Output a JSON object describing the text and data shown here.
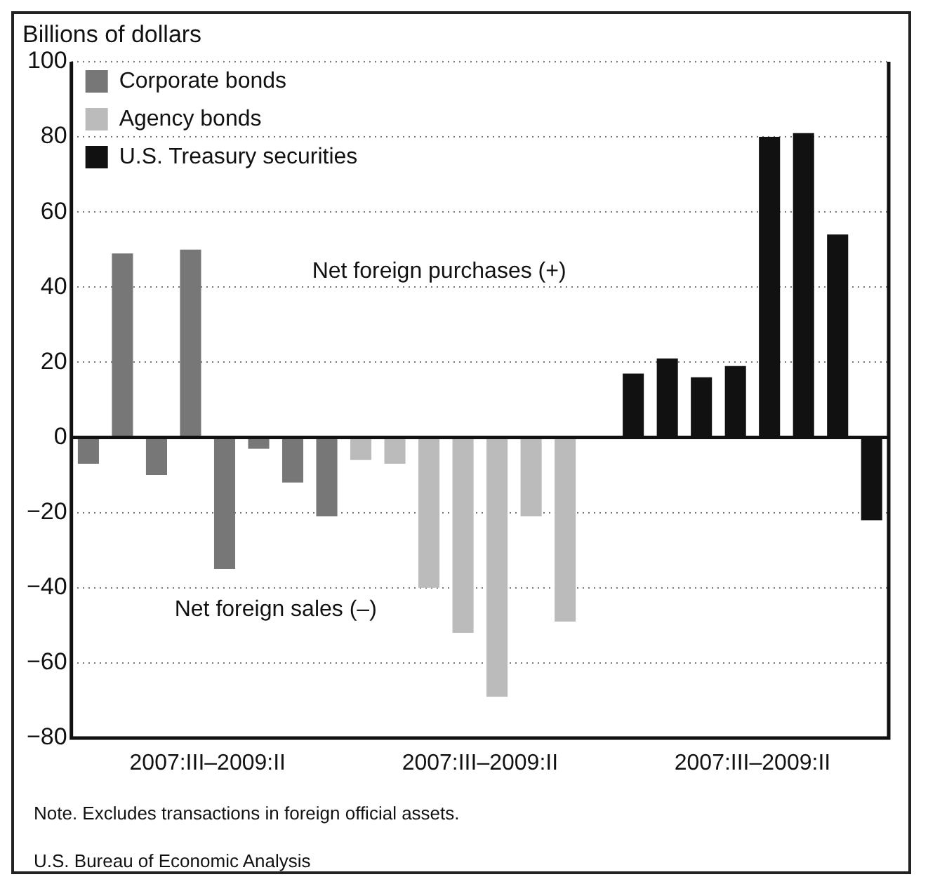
{
  "chart_data": {
    "type": "bar",
    "ylabel": "Billions of dollars",
    "categories": [
      null,
      null,
      null,
      null,
      "2007:III–2009:II",
      null,
      null,
      null,
      null,
      null,
      null,
      null,
      "2007:III–2009:II",
      null,
      null,
      null,
      null,
      null,
      null,
      null,
      "2007:III–2009:II",
      null,
      null,
      null
    ],
    "series": [
      {
        "name": "Corporate bonds",
        "color": "#777777",
        "values": [
          -7,
          49,
          -10,
          50,
          -35,
          -3,
          -12,
          -21,
          null,
          null,
          null,
          null,
          null,
          null,
          null,
          null,
          null,
          null,
          null,
          null,
          null,
          null,
          null,
          null
        ]
      },
      {
        "name": "Agency bonds",
        "color": "#bbbbbb",
        "values": [
          null,
          null,
          null,
          null,
          null,
          null,
          null,
          null,
          -6,
          -7,
          -40,
          -52,
          -69,
          -21,
          -49,
          0,
          null,
          null,
          null,
          null,
          null,
          null,
          null,
          null
        ]
      },
      {
        "name": "U.S. Treasury securities",
        "color": "#111111",
        "values": [
          null,
          null,
          null,
          null,
          null,
          null,
          null,
          null,
          null,
          null,
          null,
          null,
          null,
          null,
          null,
          null,
          17,
          21,
          16,
          19,
          80,
          81,
          54,
          -22
        ]
      }
    ],
    "ylim": [
      -80,
      100
    ],
    "yticks": [
      -80,
      -60,
      -40,
      -20,
      0,
      20,
      40,
      60,
      80,
      100
    ],
    "grid": "y",
    "legend": "top left",
    "annotations": [
      "Net foreign purchases (+)",
      "Net foreign sales (–)",
      "Note. Excludes transactions in foreign official assets.",
      "U.S. Bureau of Economic Analysis"
    ]
  }
}
